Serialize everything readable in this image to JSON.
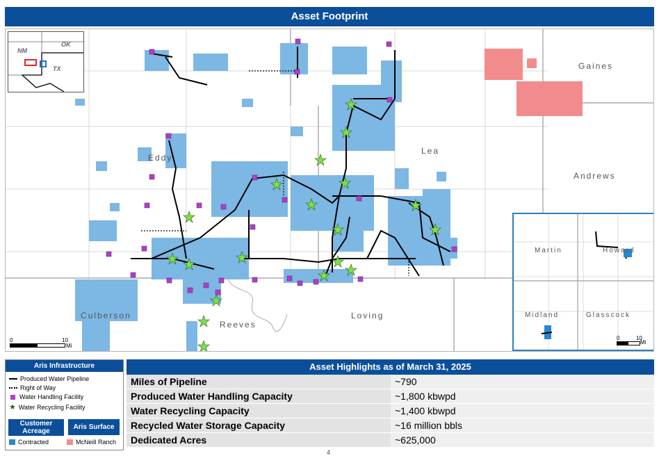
{
  "header": {
    "title": "Asset Footprint"
  },
  "map": {
    "state_inset": {
      "labels": [
        "NM",
        "OK",
        "TX"
      ]
    },
    "counties": [
      "Eddy",
      "Lea",
      "Gaines",
      "Andrews",
      "Culberson",
      "Reeves",
      "Loving"
    ],
    "scale": {
      "start": "0",
      "end": "10",
      "unit": "Mi"
    },
    "east_inset": {
      "counties": [
        "Martin",
        "Howard",
        "Midland",
        "Glasscock"
      ],
      "scale": {
        "start": "0",
        "end": "10",
        "unit": "Mi"
      }
    }
  },
  "legend": {
    "title": "Aris Infrastructure",
    "items": [
      "Produced Water Pipeline",
      "Right of Way",
      "Water Handling Facility",
      "Water Recycling Facility"
    ],
    "customer_header": "Customer Acreage",
    "surface_header": "Aris Surface",
    "contracted_label": "Contracted",
    "mcneill_label": "McNeill Ranch"
  },
  "highlights": {
    "title": "Asset Highlights as of March 31, 2025",
    "rows": [
      {
        "label": "Miles of Pipeline",
        "value": "~790"
      },
      {
        "label": "Produced Water Handling Capacity",
        "value": "~1,800 kbwpd"
      },
      {
        "label": "Water Recycling Capacity",
        "value": "~1,400 kbwpd"
      },
      {
        "label": "Recycled Water Storage Capacity",
        "value": "~16 million bbls"
      },
      {
        "label": "Dedicated Acres",
        "value": "~625,000"
      }
    ]
  },
  "colors": {
    "brand": "#0b4f9a",
    "contracted": "#2a86d1",
    "acreage_fill": "#7db7e4",
    "mcneill": "#f28c8c",
    "handling": "#b03ec9",
    "recycling": "#7ee04a"
  },
  "page_number": "4"
}
